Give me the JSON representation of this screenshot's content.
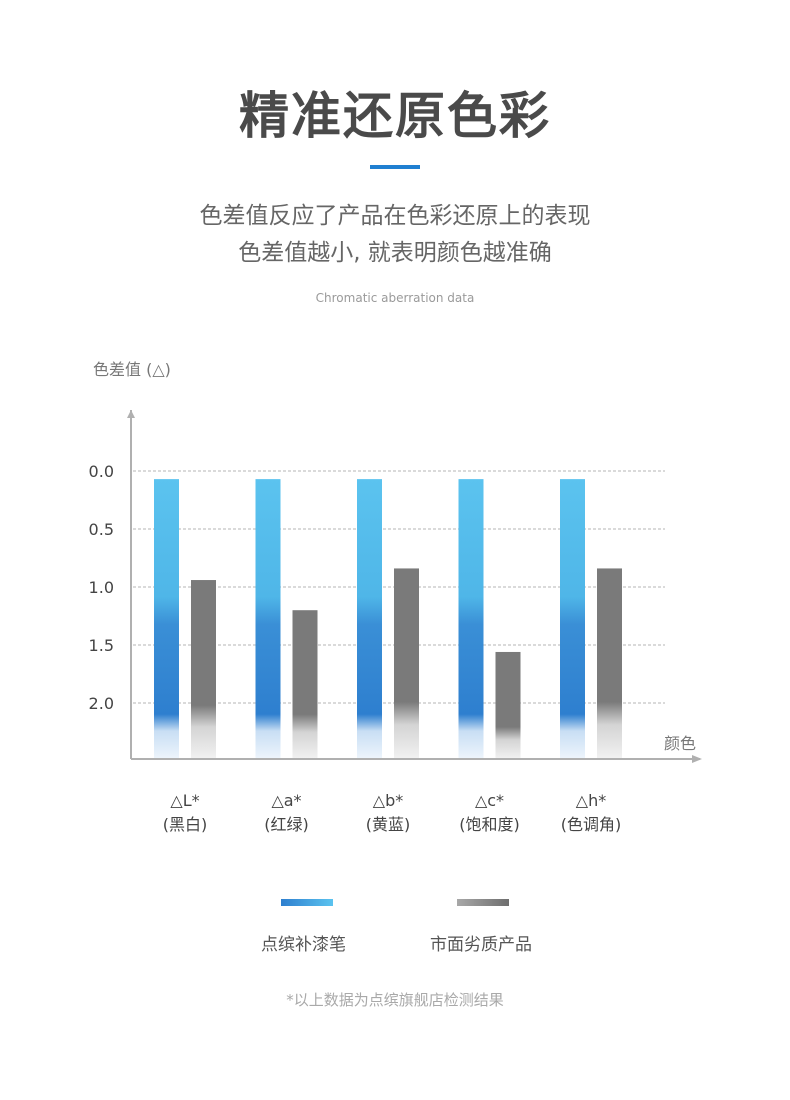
{
  "header": {
    "title": "精准还原色彩",
    "desc_line1": "色差值反应了产品在色彩还原上的表现",
    "desc_line2": "色差值越小, 就表明颜色越准确",
    "subtitle": "Chromatic aberration data"
  },
  "colors": {
    "accent": "#1f7fd1",
    "brand_light": "#5bc3ef",
    "brand_dark": "#2e7fcf",
    "competitor": "#7a7a7a"
  },
  "chart_data": {
    "type": "bar",
    "ylabel": "色差值 (△)",
    "xlabel": "颜色",
    "y_ticks": [
      "0.0",
      "0.5",
      "1.0",
      "1.5",
      "2.0"
    ],
    "ylim": [
      0,
      2.5
    ],
    "y_inverted": true,
    "grid": true,
    "categories": [
      {
        "symbol": "△L*",
        "name": "(黑白)"
      },
      {
        "symbol": "△a*",
        "name": "(红绿)"
      },
      {
        "symbol": "△b*",
        "name": "(黄蓝)"
      },
      {
        "symbol": "△c*",
        "name": "(饱和度)"
      },
      {
        "symbol": "△h*",
        "name": "(色调角)"
      }
    ],
    "series": [
      {
        "name": "点缤补漆笔",
        "values": [
          0.07,
          0.07,
          0.07,
          0.07,
          0.07
        ]
      },
      {
        "name": "市面劣质产品",
        "values": [
          0.94,
          1.2,
          0.84,
          1.56,
          0.84
        ]
      }
    ],
    "legend_position": "bottom"
  },
  "footnote": "*以上数据为点缤旗舰店检测结果"
}
